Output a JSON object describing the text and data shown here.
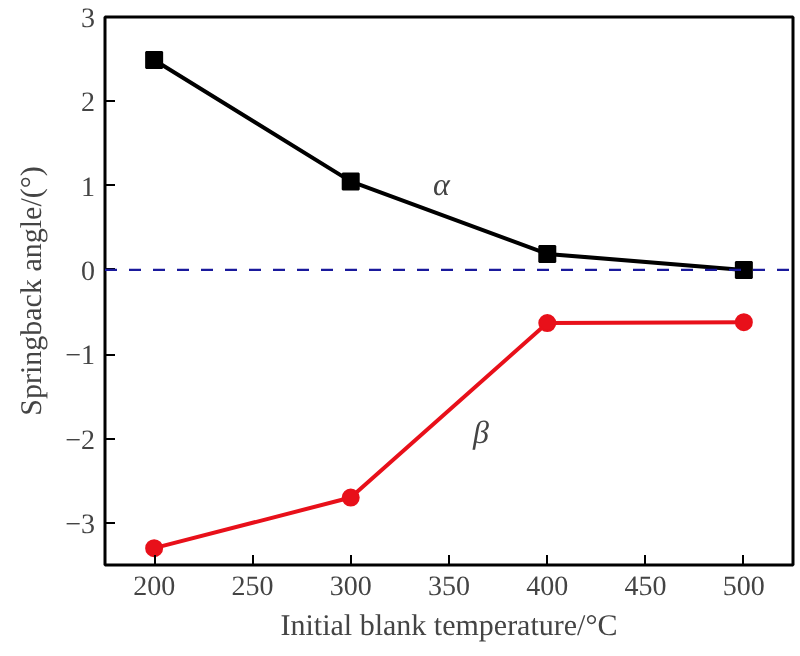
{
  "chart_data": {
    "type": "line",
    "xlabel": "Initial blank temperature/°C",
    "ylabel": "Springback angle/(°)",
    "x": [
      200,
      300,
      400,
      500
    ],
    "series": [
      {
        "name": "α",
        "color": "#000000",
        "values": [
          2.49,
          1.05,
          0.19,
          0.0
        ],
        "marker": "square"
      },
      {
        "name": "β",
        "color": "#e8101a",
        "values": [
          -3.3,
          -2.7,
          -0.63,
          -0.62
        ],
        "marker": "circle"
      }
    ],
    "ref_lines": [
      {
        "axis": "y",
        "value": 0,
        "color": "#1a1a9c",
        "line_style": "dashed"
      }
    ],
    "xlim": [
      175,
      525
    ],
    "ylim": [
      -3.5,
      3
    ],
    "xticks": [
      200,
      250,
      300,
      350,
      400,
      450,
      500
    ],
    "yticks": [
      -3,
      -2,
      -1,
      0,
      1,
      2,
      3
    ],
    "grid": false,
    "line_style": "solid"
  }
}
